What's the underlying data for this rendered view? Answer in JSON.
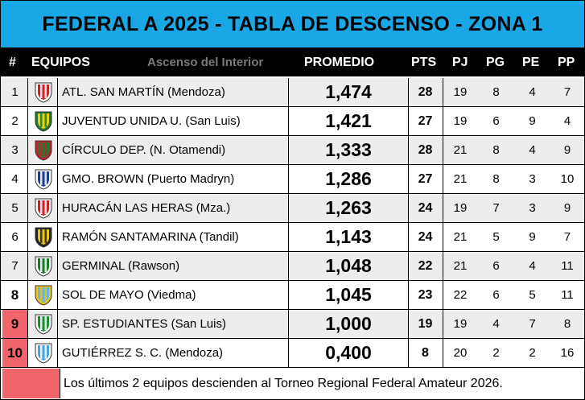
{
  "title": "FEDERAL A 2025 - TABLA DE DESCENSO - ZONA 1",
  "headers": {
    "num": "#",
    "team": "EQUIPOS",
    "watermark": "Ascenso del Interior",
    "promedio": "PROMEDIO",
    "pts": "PTS",
    "pj": "PJ",
    "pg": "PG",
    "pe": "PE",
    "pp": "PP"
  },
  "rows": [
    {
      "pos": "1",
      "team": "ATL. SAN MARTÍN (Mendoza)",
      "promedio": "1,474",
      "pts": "28",
      "pj": "19",
      "pg": "8",
      "pe": "4",
      "pp": "7",
      "shield_icon": "san-martin-shield-icon",
      "colors": [
        "#d0202a",
        "#ffffff"
      ]
    },
    {
      "pos": "2",
      "team": "JUVENTUD UNIDA U. (San Luis)",
      "promedio": "1,421",
      "pts": "27",
      "pj": "19",
      "pg": "6",
      "pe": "9",
      "pp": "4",
      "shield_icon": "juventud-unida-shield-icon",
      "colors": [
        "#e7d21b",
        "#1f7a2e"
      ]
    },
    {
      "pos": "3",
      "team": "CÍRCULO DEP. (N. Otamendi)",
      "promedio": "1,333",
      "pts": "28",
      "pj": "21",
      "pg": "8",
      "pe": "4",
      "pp": "9",
      "shield_icon": "circulo-deportivo-shield-icon",
      "colors": [
        "#1f7a2e",
        "#c8202a"
      ]
    },
    {
      "pos": "4",
      "team": "GMO. BROWN (Puerto Madryn)",
      "promedio": "1,286",
      "pts": "27",
      "pj": "21",
      "pg": "8",
      "pe": "3",
      "pp": "10",
      "shield_icon": "guillermo-brown-shield-icon",
      "colors": [
        "#1d3d8f",
        "#ffffff"
      ]
    },
    {
      "pos": "5",
      "team": "HURACÁN LAS HERAS (Mza.)",
      "promedio": "1,263",
      "pts": "24",
      "pj": "19",
      "pg": "7",
      "pe": "3",
      "pp": "9",
      "shield_icon": "huracan-las-heras-shield-icon",
      "colors": [
        "#d0202a",
        "#ffffff"
      ]
    },
    {
      "pos": "6",
      "team": "RAMÓN SANTAMARINA (Tandil)",
      "promedio": "1,143",
      "pts": "24",
      "pj": "21",
      "pg": "5",
      "pe": "9",
      "pp": "7",
      "shield_icon": "santamarina-shield-icon",
      "colors": [
        "#e7c51b",
        "#222222"
      ]
    },
    {
      "pos": "7",
      "team": "GERMINAL (Rawson)",
      "promedio": "1,048",
      "pts": "22",
      "pj": "21",
      "pg": "6",
      "pe": "4",
      "pp": "11",
      "shield_icon": "germinal-shield-icon",
      "colors": [
        "#1f7a2e",
        "#ffffff"
      ]
    },
    {
      "pos": "8",
      "team": "SOL DE MAYO (Viedma)",
      "promedio": "1,045",
      "pts": "23",
      "pj": "22",
      "pg": "6",
      "pe": "5",
      "pp": "11",
      "shield_icon": "sol-de-mayo-shield-icon",
      "colors": [
        "#5fb8e6",
        "#f2c21b"
      ]
    },
    {
      "pos": "9",
      "team": "SP. ESTUDIANTES (San Luis)",
      "promedio": "1,000",
      "pts": "19",
      "pj": "19",
      "pg": "4",
      "pe": "7",
      "pp": "8",
      "shield_icon": "sportivo-estudiantes-shield-icon",
      "colors": [
        "#1f8a3a",
        "#ffffff"
      ]
    },
    {
      "pos": "10",
      "team": "GUTIÉRREZ S. C. (Mendoza)",
      "promedio": "0,400",
      "pts": "8",
      "pj": "20",
      "pg": "2",
      "pe": "2",
      "pp": "16",
      "shield_icon": "gutierrez-shield-icon",
      "colors": [
        "#4aa3e0",
        "#ffffff"
      ]
    }
  ],
  "relegation_color": "#f0656b",
  "title_color": "#1aa7e6",
  "footer": "Los últimos 2 equipos descienden al Torneo Regional Federal Amateur 2026."
}
